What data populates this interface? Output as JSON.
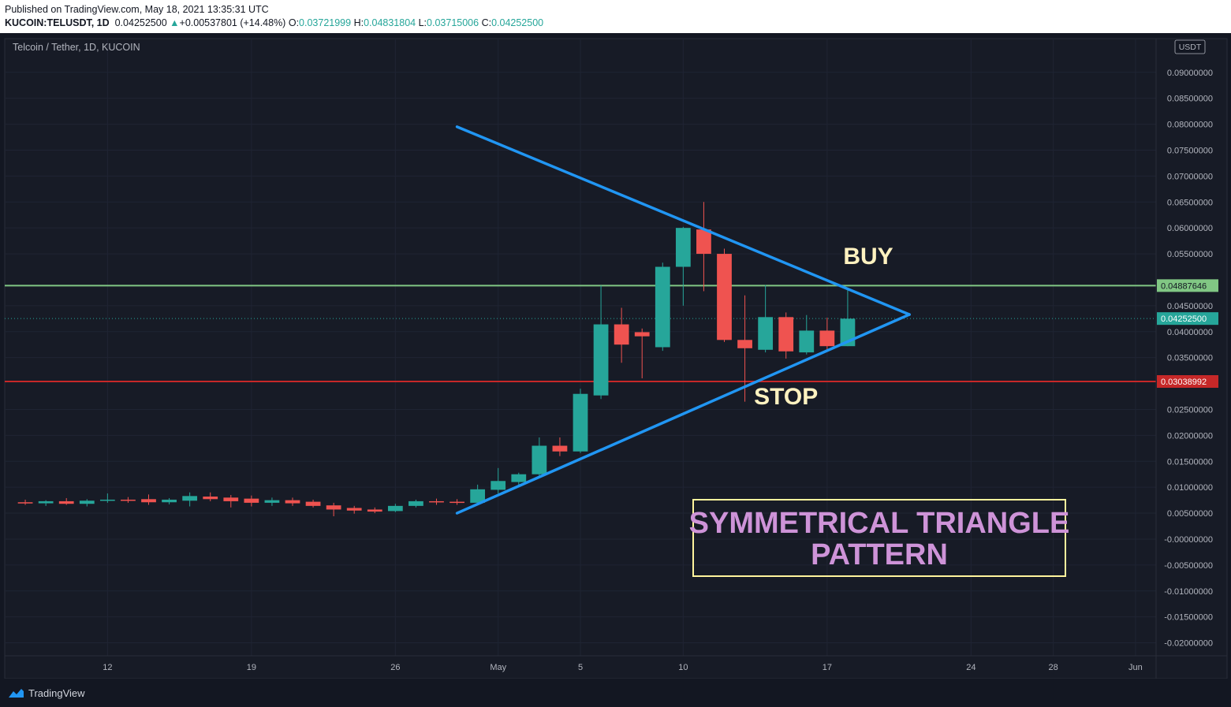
{
  "header": {
    "published": "Published on TradingView.com, May 18, 2021 13:35:31 UTC",
    "symbol": "KUCOIN:TELUSDT, 1D",
    "last": "0.04252500",
    "change_arrow": "▲",
    "change": "+0.00537801 (+14.48%)",
    "o_label": "O:",
    "o_value": "0.03721999",
    "h_label": "H:",
    "h_value": "0.04831804",
    "l_label": "L:",
    "l_value": "0.03715006",
    "c_label": "C:",
    "c_value": "0.04252500"
  },
  "footer": {
    "brand": "TradingView"
  },
  "colors": {
    "background": "#131722",
    "grid": "#1f2433",
    "up": "#26a69a",
    "down": "#ef5350",
    "trendline": "#2196f3",
    "buy_line": "#81c784",
    "stop_line": "#c62828",
    "annotation_text": "#fff2c0",
    "pattern_text": "#ce93d8",
    "pattern_box": "#fff59d"
  },
  "chart_data": {
    "type": "candlestick",
    "title": "Telcoin / Tether, 1D, KUCOIN",
    "currency": "USDT",
    "x_axis": {
      "ticks": [
        {
          "label": "12",
          "date": "2021-04-12"
        },
        {
          "label": "19",
          "date": "2021-04-19"
        },
        {
          "label": "26",
          "date": "2021-04-26"
        },
        {
          "label": "May",
          "date": "2021-05-01"
        },
        {
          "label": "5",
          "date": "2021-05-05"
        },
        {
          "label": "10",
          "date": "2021-05-10"
        },
        {
          "label": "17",
          "date": "2021-05-17"
        },
        {
          "label": "24",
          "date": "2021-05-24"
        },
        {
          "label": "28",
          "date": "2021-05-28"
        },
        {
          "label": "Jun",
          "date": "2021-06-01"
        }
      ],
      "range": [
        "2021-04-07",
        "2021-06-02"
      ]
    },
    "y_axis": {
      "ylim": [
        -0.0225,
        0.0965
      ],
      "ticks": [
        "0.09000000",
        "0.08500000",
        "0.08000000",
        "0.07500000",
        "0.07000000",
        "0.06500000",
        "0.06000000",
        "0.05500000",
        "0.04500000",
        "0.04000000",
        "0.03500000",
        "0.02500000",
        "0.02000000",
        "0.01500000",
        "0.01000000",
        "0.00500000",
        "-0.00000000",
        "-0.00500000",
        "-0.01000000",
        "-0.01500000",
        "-0.02000000"
      ],
      "scale": "linear"
    },
    "grid": true,
    "candles": [
      {
        "date": "2021-04-08",
        "o": 0.0071,
        "h": 0.0076,
        "l": 0.0066,
        "c": 0.0069
      },
      {
        "date": "2021-04-09",
        "o": 0.0069,
        "h": 0.0075,
        "l": 0.0064,
        "c": 0.0073
      },
      {
        "date": "2021-04-10",
        "o": 0.0073,
        "h": 0.0079,
        "l": 0.0066,
        "c": 0.0068
      },
      {
        "date": "2021-04-11",
        "o": 0.0068,
        "h": 0.0077,
        "l": 0.0063,
        "c": 0.0074
      },
      {
        "date": "2021-04-12",
        "o": 0.0074,
        "h": 0.0088,
        "l": 0.007,
        "c": 0.0076
      },
      {
        "date": "2021-04-13",
        "o": 0.0076,
        "h": 0.0081,
        "l": 0.007,
        "c": 0.0074
      },
      {
        "date": "2021-04-14",
        "o": 0.0077,
        "h": 0.0086,
        "l": 0.0066,
        "c": 0.0071
      },
      {
        "date": "2021-04-15",
        "o": 0.0071,
        "h": 0.0079,
        "l": 0.0067,
        "c": 0.0076
      },
      {
        "date": "2021-04-16",
        "o": 0.0074,
        "h": 0.009,
        "l": 0.0063,
        "c": 0.0083
      },
      {
        "date": "2021-04-17",
        "o": 0.0082,
        "h": 0.009,
        "l": 0.0073,
        "c": 0.0077
      },
      {
        "date": "2021-04-18",
        "o": 0.008,
        "h": 0.0085,
        "l": 0.0061,
        "c": 0.0073
      },
      {
        "date": "2021-04-19",
        "o": 0.0078,
        "h": 0.0084,
        "l": 0.0063,
        "c": 0.007
      },
      {
        "date": "2021-04-20",
        "o": 0.007,
        "h": 0.008,
        "l": 0.0064,
        "c": 0.0075
      },
      {
        "date": "2021-04-21",
        "o": 0.0075,
        "h": 0.008,
        "l": 0.0064,
        "c": 0.0069
      },
      {
        "date": "2021-04-22",
        "o": 0.0072,
        "h": 0.0076,
        "l": 0.0061,
        "c": 0.0064
      },
      {
        "date": "2021-04-23",
        "o": 0.0065,
        "h": 0.007,
        "l": 0.0044,
        "c": 0.0057
      },
      {
        "date": "2021-04-24",
        "o": 0.006,
        "h": 0.0064,
        "l": 0.0049,
        "c": 0.0055
      },
      {
        "date": "2021-04-25",
        "o": 0.0057,
        "h": 0.0061,
        "l": 0.005,
        "c": 0.0053
      },
      {
        "date": "2021-04-26",
        "o": 0.0054,
        "h": 0.0068,
        "l": 0.0052,
        "c": 0.0064
      },
      {
        "date": "2021-04-27",
        "o": 0.0064,
        "h": 0.0076,
        "l": 0.0061,
        "c": 0.0073
      },
      {
        "date": "2021-04-28",
        "o": 0.0073,
        "h": 0.0078,
        "l": 0.0066,
        "c": 0.0072
      },
      {
        "date": "2021-04-29",
        "o": 0.0072,
        "h": 0.0077,
        "l": 0.0066,
        "c": 0.007
      },
      {
        "date": "2021-04-30",
        "o": 0.007,
        "h": 0.0105,
        "l": 0.0067,
        "c": 0.0096
      },
      {
        "date": "2021-05-01",
        "o": 0.0095,
        "h": 0.0137,
        "l": 0.0088,
        "c": 0.0112
      },
      {
        "date": "2021-05-02",
        "o": 0.011,
        "h": 0.0128,
        "l": 0.0104,
        "c": 0.0125
      },
      {
        "date": "2021-05-03",
        "o": 0.0125,
        "h": 0.0196,
        "l": 0.0118,
        "c": 0.018
      },
      {
        "date": "2021-05-04",
        "o": 0.018,
        "h": 0.0196,
        "l": 0.016,
        "c": 0.0169
      },
      {
        "date": "2021-05-05",
        "o": 0.0169,
        "h": 0.029,
        "l": 0.0166,
        "c": 0.028
      },
      {
        "date": "2021-05-06",
        "o": 0.0277,
        "h": 0.0489,
        "l": 0.027,
        "c": 0.0414
      },
      {
        "date": "2021-05-07",
        "o": 0.0414,
        "h": 0.0446,
        "l": 0.034,
        "c": 0.0375
      },
      {
        "date": "2021-05-08",
        "o": 0.0399,
        "h": 0.0406,
        "l": 0.031,
        "c": 0.0391
      },
      {
        "date": "2021-05-09",
        "o": 0.037,
        "h": 0.0533,
        "l": 0.0363,
        "c": 0.0525
      },
      {
        "date": "2021-05-10",
        "o": 0.0525,
        "h": 0.0602,
        "l": 0.045,
        "c": 0.06
      },
      {
        "date": "2021-05-11",
        "o": 0.0597,
        "h": 0.065,
        "l": 0.0478,
        "c": 0.055
      },
      {
        "date": "2021-05-12",
        "o": 0.055,
        "h": 0.056,
        "l": 0.038,
        "c": 0.0384
      },
      {
        "date": "2021-05-13",
        "o": 0.0384,
        "h": 0.047,
        "l": 0.0265,
        "c": 0.0368
      },
      {
        "date": "2021-05-14",
        "o": 0.0365,
        "h": 0.049,
        "l": 0.036,
        "c": 0.0428
      },
      {
        "date": "2021-05-15",
        "o": 0.0428,
        "h": 0.0437,
        "l": 0.0348,
        "c": 0.0362
      },
      {
        "date": "2021-05-16",
        "o": 0.036,
        "h": 0.0432,
        "l": 0.0356,
        "c": 0.0402
      },
      {
        "date": "2021-05-17",
        "o": 0.0402,
        "h": 0.0427,
        "l": 0.0364,
        "c": 0.0372
      },
      {
        "date": "2021-05-18",
        "o": 0.0372,
        "h": 0.0483,
        "l": 0.0372,
        "c": 0.0425
      }
    ],
    "price_labels": {
      "buy": {
        "value": 0.04887646,
        "text": "0.04887646"
      },
      "current": {
        "value": 0.042525,
        "text": "0.04252500"
      },
      "stop": {
        "value": 0.03038992,
        "text": "0.03038992"
      }
    },
    "trendlines": [
      {
        "from": {
          "date": "2021-04-29",
          "price": 0.0795
        },
        "to": {
          "date": "2021-05-21",
          "price": 0.0433
        }
      },
      {
        "from": {
          "date": "2021-04-29",
          "price": 0.005
        },
        "to": {
          "date": "2021-05-21",
          "price": 0.0433
        }
      }
    ],
    "annotations": {
      "buy": {
        "text": "BUY",
        "date": "2021-05-19",
        "price": 0.053
      },
      "stop": {
        "text": "STOP",
        "date": "2021-05-15",
        "price": 0.026
      },
      "pattern_line1": "SYMMETRICAL TRIANGLE",
      "pattern_line2": "PATTERN"
    }
  }
}
